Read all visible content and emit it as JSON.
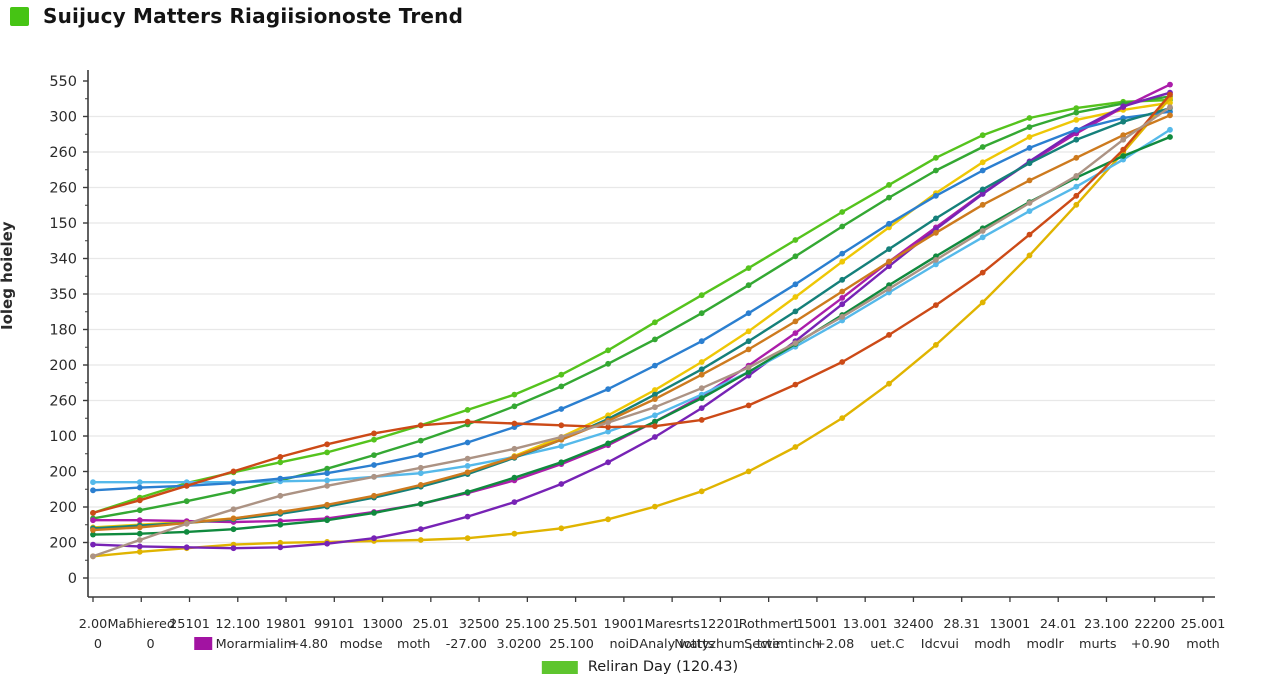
{
  "header": {
    "title": "Suijucy Matters Riagiisionoste Trend",
    "swatch_color": "#46c414"
  },
  "legend": {
    "label": "Reliran Day (120.43)",
    "swatch_color": "#5ec52e"
  },
  "y_axis": {
    "axis_label": "Ioleg hoieley",
    "tick_labels": [
      "550",
      "300",
      "260",
      "260",
      "150",
      "340",
      "350",
      "180",
      "200",
      "260",
      "100",
      "200",
      "200",
      "200",
      "0"
    ]
  },
  "x_axis": {
    "row1": [
      "2.00",
      "Maƃhiered",
      "25101",
      "12.100",
      "19801",
      "99101",
      "13000",
      "25.01",
      "32500",
      "25.100",
      "25.501",
      "19001",
      "Maresrts",
      "12201",
      "Rothmert",
      "15001",
      "13.001",
      "32400",
      "28.31",
      "13001",
      "24.01",
      "23.100",
      "22200",
      "25.001"
    ],
    "row2_tokens": [
      {
        "text": "0"
      },
      {
        "text": "0"
      },
      {
        "swatch": "#a213a2"
      },
      {
        "text": "Morarmialim"
      },
      {
        "text": "+4.80"
      },
      {
        "text": "modse"
      },
      {
        "text": "moth"
      },
      {
        "text": "-27.00"
      },
      {
        "text": "3.0200"
      },
      {
        "text": "25.100"
      },
      {
        "text": "noiD"
      },
      {
        "text": "Analy watts"
      },
      {
        "text": "Nottyzhum , twe:"
      },
      {
        "text": "Sectimtinch"
      },
      {
        "text": "+2.08"
      },
      {
        "text": "uet.C"
      },
      {
        "text": "Idcvui"
      },
      {
        "text": "modh"
      },
      {
        "text": "modlr"
      },
      {
        "text": "murts"
      },
      {
        "text": "+0.90"
      },
      {
        "text": "moth"
      }
    ]
  },
  "chart_data": {
    "type": "line",
    "title": "Suijucy Matters Riagiisionoste Trend",
    "xlabel": "",
    "ylabel": "Ioleg hoieley",
    "ylim": [
      0,
      550
    ],
    "grid": true,
    "legend_position": "bottom",
    "categories": [
      "2.00",
      "Maƃhiered",
      "25101",
      "12.100",
      "19801",
      "99101",
      "13000",
      "25.01",
      "32500",
      "25.100",
      "25.501",
      "19001",
      "Maresrts",
      "12201",
      "Rothmert",
      "15001",
      "13.001",
      "32400",
      "28.31",
      "13001",
      "24.01",
      "23.100",
      "22200",
      "25.001"
    ],
    "series": [
      {
        "name": "lime",
        "color": "#55c31d",
        "values": [
          72,
          89,
          105,
          117,
          128,
          139,
          153,
          169,
          186,
          203,
          225,
          252,
          283,
          313,
          343,
          374,
          405,
          435,
          465,
          490,
          509,
          520,
          527,
          529
        ]
      },
      {
        "name": "green",
        "color": "#34a833",
        "values": [
          66,
          75,
          85,
          96,
          108,
          121,
          136,
          152,
          170,
          190,
          212,
          237,
          264,
          293,
          324,
          356,
          389,
          421,
          451,
          477,
          499,
          515,
          525,
          533
        ]
      },
      {
        "name": "yellow",
        "color": "#eec706",
        "values": [
          56,
          59,
          62,
          66,
          72,
          80,
          90,
          102,
          117,
          135,
          156,
          180,
          208,
          239,
          273,
          311,
          350,
          388,
          426,
          460,
          488,
          507,
          518,
          526
        ]
      },
      {
        "name": "gold",
        "color": "#e0b400",
        "values": [
          24,
          29,
          33,
          37,
          39,
          40,
          41,
          42,
          44,
          49,
          55,
          65,
          79,
          96,
          118,
          145,
          177,
          215,
          258,
          305,
          357,
          413,
          471,
          531
        ]
      },
      {
        "name": "magenta",
        "color": "#ab1daa",
        "values": [
          64,
          64,
          63,
          62,
          63,
          66,
          73,
          82,
          94,
          108,
          126,
          147,
          173,
          201,
          235,
          271,
          310,
          350,
          388,
          426,
          460,
          492,
          521,
          546
        ]
      },
      {
        "name": "violet",
        "color": "#7723b5",
        "values": [
          37,
          35,
          34,
          33,
          34,
          38,
          44,
          54,
          68,
          84,
          104,
          128,
          156,
          188,
          224,
          262,
          303,
          345,
          386,
          425,
          461,
          495,
          522,
          537
        ]
      },
      {
        "name": "skyblue",
        "color": "#55b9ea",
        "values": [
          106,
          106,
          106,
          106,
          107,
          108,
          112,
          116,
          124,
          134,
          146,
          162,
          180,
          203,
          228,
          256,
          285,
          316,
          347,
          377,
          406,
          433,
          463,
          496
        ]
      },
      {
        "name": "steelblue",
        "color": "#2b7fd0",
        "values": [
          97,
          100,
          102,
          105,
          110,
          116,
          125,
          136,
          150,
          167,
          187,
          209,
          235,
          262,
          293,
          325,
          359,
          392,
          423,
          451,
          476,
          496,
          509,
          516
        ]
      },
      {
        "name": "teal",
        "color": "#15807a",
        "values": [
          55,
          58,
          61,
          65,
          71,
          79,
          89,
          101,
          115,
          133,
          153,
          176,
          203,
          231,
          262,
          295,
          330,
          364,
          398,
          430,
          459,
          485,
          505,
          520
        ]
      },
      {
        "name": "darkgreen",
        "color": "#108a3e",
        "values": [
          48,
          49,
          51,
          54,
          59,
          64,
          72,
          82,
          95,
          111,
          128,
          149,
          173,
          199,
          228,
          259,
          291,
          324,
          356,
          387,
          416,
          443,
          467,
          488
        ]
      },
      {
        "name": "orangered",
        "color": "#cc4a17",
        "values": [
          72,
          86,
          102,
          118,
          134,
          148,
          160,
          169,
          173,
          171,
          169,
          167,
          168,
          175,
          191,
          214,
          239,
          269,
          302,
          338,
          380,
          423,
          474,
          535
        ]
      },
      {
        "name": "orange",
        "color": "#cd7a1e",
        "values": [
          53,
          56,
          61,
          66,
          73,
          81,
          91,
          103,
          117,
          134,
          153,
          174,
          198,
          225,
          253,
          284,
          317,
          350,
          382,
          413,
          440,
          465,
          490,
          512
        ]
      },
      {
        "name": "tan",
        "color": "#ac9384",
        "values": [
          24,
          42,
          60,
          76,
          91,
          102,
          112,
          122,
          132,
          143,
          156,
          172,
          189,
          210,
          233,
          260,
          289,
          320,
          352,
          384,
          415,
          445,
          485,
          521
        ]
      }
    ]
  }
}
